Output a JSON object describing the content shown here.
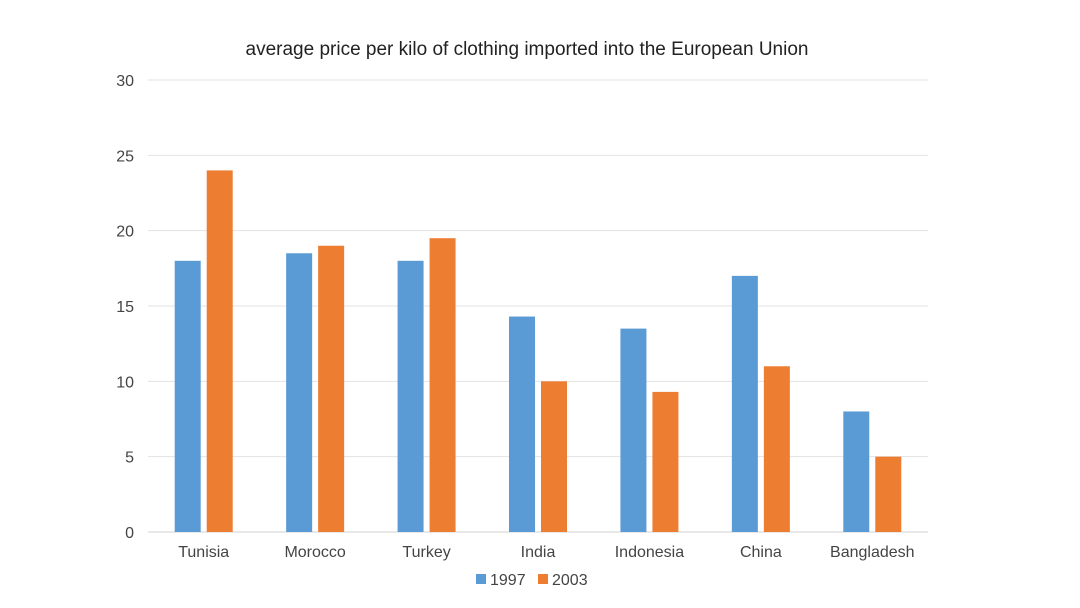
{
  "chart_data": {
    "type": "bar",
    "title": "average price per kilo of clothing imported into the European Union",
    "categories": [
      "Tunisia",
      "Morocco",
      "Turkey",
      "India",
      "Indonesia",
      "China",
      "Bangladesh"
    ],
    "series": [
      {
        "name": "1997",
        "color": "#5B9BD5",
        "values": [
          18,
          18.5,
          18,
          14.3,
          13.5,
          17,
          8
        ]
      },
      {
        "name": "2003",
        "color": "#ED7D31",
        "values": [
          24,
          19,
          19.5,
          10,
          9.3,
          11,
          5
        ]
      }
    ],
    "ylim": [
      0,
      30
    ],
    "yticks": [
      0,
      5,
      10,
      15,
      20,
      25,
      30
    ],
    "grid": true,
    "legend_position": "bottom"
  }
}
